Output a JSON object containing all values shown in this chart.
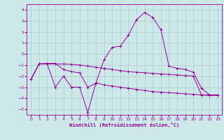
{
  "xlabel": "Windchill (Refroidissement éolien,°C)",
  "bg_color": "#cce8e8",
  "grid_color": "#aacccc",
  "line_color": "#990099",
  "xlim": [
    -0.5,
    23.5
  ],
  "ylim": [
    -5.5,
    4.5
  ],
  "xticks": [
    0,
    1,
    2,
    3,
    4,
    5,
    6,
    7,
    8,
    9,
    10,
    11,
    12,
    13,
    14,
    15,
    16,
    17,
    18,
    19,
    20,
    21,
    22,
    23
  ],
  "yticks": [
    -5,
    -4,
    -3,
    -2,
    -1,
    0,
    1,
    2,
    3,
    4
  ],
  "series1": [
    [
      0,
      -2.3
    ],
    [
      1,
      -0.9
    ],
    [
      2,
      -0.85
    ],
    [
      3,
      -0.85
    ],
    [
      4,
      -1.4
    ],
    [
      5,
      -1.6
    ],
    [
      6,
      -1.7
    ],
    [
      7,
      -3.0
    ],
    [
      8,
      -2.65
    ],
    [
      9,
      -0.5
    ],
    [
      10,
      0.6
    ],
    [
      11,
      0.7
    ],
    [
      12,
      1.7
    ],
    [
      13,
      3.1
    ],
    [
      14,
      3.75
    ],
    [
      15,
      3.3
    ],
    [
      16,
      2.2
    ],
    [
      17,
      -1.1
    ],
    [
      18,
      -1.3
    ],
    [
      19,
      -1.4
    ],
    [
      20,
      -1.65
    ],
    [
      21,
      -3.1
    ],
    [
      22,
      -3.7
    ],
    [
      23,
      -3.7
    ]
  ],
  "series2": [
    [
      0,
      -2.3
    ],
    [
      1,
      -0.9
    ],
    [
      2,
      -0.9
    ],
    [
      3,
      -3.0
    ],
    [
      4,
      -2.0
    ],
    [
      5,
      -3.0
    ],
    [
      6,
      -3.0
    ],
    [
      7,
      -5.3
    ],
    [
      8,
      -2.6
    ],
    [
      9,
      -2.8
    ],
    [
      10,
      -2.9
    ],
    [
      11,
      -3.0
    ],
    [
      12,
      -3.1
    ],
    [
      13,
      -3.2
    ],
    [
      14,
      -3.3
    ],
    [
      15,
      -3.4
    ],
    [
      16,
      -3.45
    ],
    [
      17,
      -3.5
    ],
    [
      18,
      -3.55
    ],
    [
      19,
      -3.6
    ],
    [
      20,
      -3.65
    ],
    [
      21,
      -3.7
    ],
    [
      22,
      -3.75
    ],
    [
      23,
      -3.75
    ]
  ],
  "series3": [
    [
      0,
      -2.3
    ],
    [
      1,
      -0.9
    ],
    [
      2,
      -0.9
    ],
    [
      3,
      -0.9
    ],
    [
      4,
      -0.9
    ],
    [
      5,
      -0.95
    ],
    [
      6,
      -1.0
    ],
    [
      7,
      -1.1
    ],
    [
      8,
      -1.2
    ],
    [
      9,
      -1.3
    ],
    [
      10,
      -1.4
    ],
    [
      11,
      -1.5
    ],
    [
      12,
      -1.6
    ],
    [
      13,
      -1.65
    ],
    [
      14,
      -1.7
    ],
    [
      15,
      -1.75
    ],
    [
      16,
      -1.8
    ],
    [
      17,
      -1.85
    ],
    [
      18,
      -1.9
    ],
    [
      19,
      -1.95
    ],
    [
      20,
      -2.0
    ],
    [
      21,
      -3.7
    ],
    [
      22,
      -3.7
    ],
    [
      23,
      -3.7
    ]
  ]
}
